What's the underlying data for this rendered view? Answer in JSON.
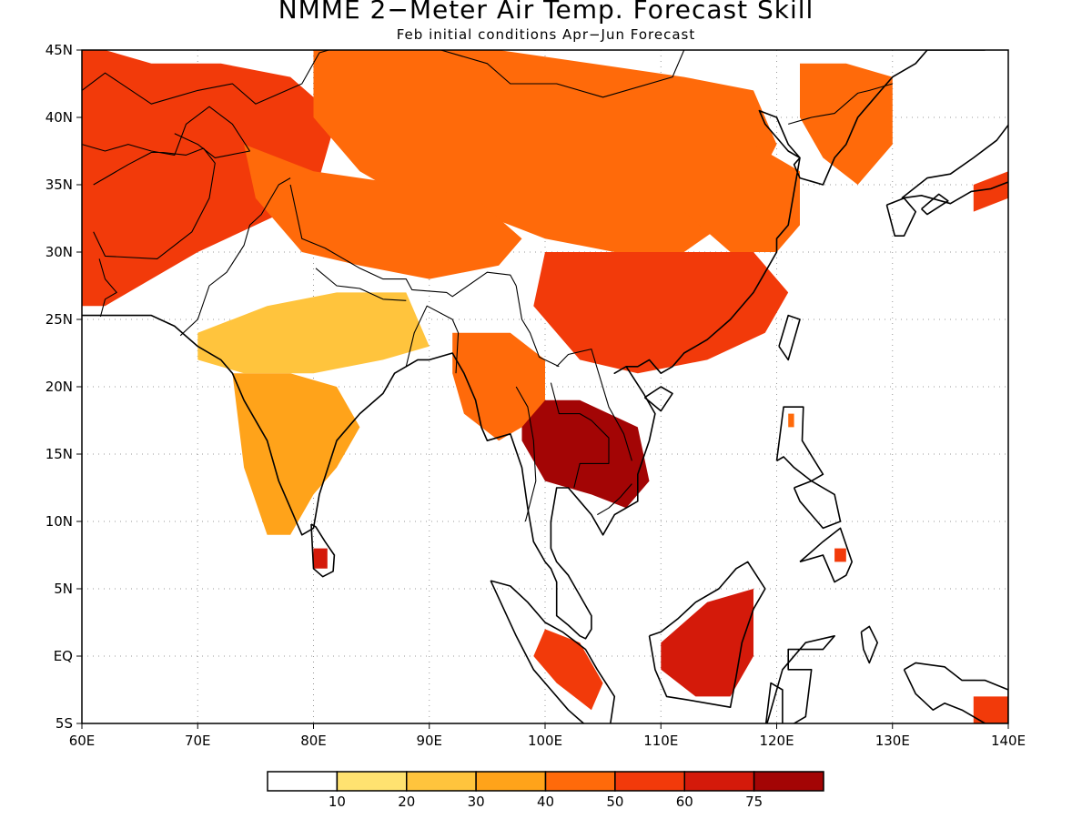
{
  "title": "NMME 2−Meter Air Temp. Forecast Skill",
  "subtitle": "Feb initial conditions  Apr−Jun Forecast",
  "map": {
    "lon_range": [
      60,
      140
    ],
    "lat_range": [
      -5,
      45
    ],
    "grid": "dotted",
    "lon_ticks": [
      {
        "value": 60,
        "label": "60E"
      },
      {
        "value": 70,
        "label": "70E"
      },
      {
        "value": 80,
        "label": "80E"
      },
      {
        "value": 90,
        "label": "90E"
      },
      {
        "value": 100,
        "label": "100E"
      },
      {
        "value": 110,
        "label": "110E"
      },
      {
        "value": 120,
        "label": "120E"
      },
      {
        "value": 130,
        "label": "130E"
      },
      {
        "value": 140,
        "label": "140E"
      }
    ],
    "lat_ticks": [
      {
        "value": 45,
        "label": "45N"
      },
      {
        "value": 40,
        "label": "40N"
      },
      {
        "value": 35,
        "label": "35N"
      },
      {
        "value": 30,
        "label": "30N"
      },
      {
        "value": 25,
        "label": "25N"
      },
      {
        "value": 20,
        "label": "20N"
      },
      {
        "value": 15,
        "label": "15N"
      },
      {
        "value": 10,
        "label": "10N"
      },
      {
        "value": 5,
        "label": "5N"
      },
      {
        "value": 0,
        "label": "EQ"
      },
      {
        "value": -5,
        "label": "5S"
      }
    ]
  },
  "colorbar": {
    "colors": [
      "#ffffff",
      "#ffe270",
      "#ffc43d",
      "#ffa31a",
      "#ff6a0a",
      "#f23a0a",
      "#d41a0a",
      "#a30505"
    ],
    "labels": [
      "10",
      "20",
      "30",
      "40",
      "50",
      "60",
      "75"
    ]
  },
  "skill_regions": [
    {
      "name": "central-asia",
      "value": 50,
      "lon": [
        60,
        62,
        66,
        72,
        78,
        82,
        80,
        75,
        70,
        66,
        62,
        60
      ],
      "lat": [
        45,
        45,
        44,
        44,
        43,
        40,
        34,
        32,
        30,
        28,
        26,
        26
      ]
    },
    {
      "name": "china-north",
      "value": 40,
      "lon": [
        80,
        88,
        96,
        104,
        112,
        118,
        120,
        117,
        112,
        106,
        100,
        94,
        88,
        84,
        80
      ],
      "lat": [
        45,
        45,
        45,
        44,
        43,
        42,
        38,
        33,
        30,
        30,
        31,
        33,
        34,
        36,
        40
      ]
    },
    {
      "name": "tibet-west",
      "value": 40,
      "lon": [
        74,
        80,
        88,
        94,
        98,
        96,
        90,
        84,
        79,
        75
      ],
      "lat": [
        38,
        36,
        35,
        34,
        31,
        29,
        28,
        29,
        30,
        34
      ]
    },
    {
      "name": "south-china",
      "value": 50,
      "lon": [
        100,
        106,
        112,
        118,
        121,
        119,
        114,
        108,
        103,
        99
      ],
      "lat": [
        30,
        30,
        30,
        30,
        27,
        24,
        22,
        21,
        22,
        26
      ]
    },
    {
      "name": "east-china",
      "value": 40,
      "lon": [
        112,
        118,
        122,
        122,
        120,
        116,
        112
      ],
      "lat": [
        38,
        38,
        36,
        32,
        30,
        30,
        33
      ]
    },
    {
      "name": "korea",
      "value": 40,
      "lon": [
        122,
        126,
        130,
        130,
        127,
        124,
        122
      ],
      "lat": [
        44,
        44,
        43,
        38,
        35,
        37,
        40
      ]
    },
    {
      "name": "japan-west",
      "value": 50,
      "lon": [
        137,
        140,
        140,
        137
      ],
      "lat": [
        35,
        36,
        34,
        33
      ]
    },
    {
      "name": "indochina",
      "value": 75,
      "lon": [
        98,
        103,
        108,
        109,
        107,
        104,
        100,
        98
      ],
      "lat": [
        19,
        19,
        17,
        13,
        11,
        12,
        13,
        16
      ]
    },
    {
      "name": "myanmar",
      "value": 40,
      "lon": [
        92,
        97,
        100,
        100,
        98,
        96,
        93,
        92
      ],
      "lat": [
        24,
        24,
        22,
        19,
        17,
        16,
        18,
        21
      ]
    },
    {
      "name": "india-south",
      "value": 30,
      "lon": [
        73,
        78,
        82,
        84,
        82,
        80,
        78,
        76,
        74
      ],
      "lat": [
        21,
        21,
        20,
        17,
        14,
        12,
        9,
        9,
        14
      ]
    },
    {
      "name": "india-north",
      "value": 20,
      "lon": [
        70,
        76,
        82,
        88,
        90,
        86,
        80,
        74,
        70
      ],
      "lat": [
        24,
        26,
        27,
        27,
        23,
        22,
        21,
        21,
        22
      ]
    },
    {
      "name": "sri-lanka",
      "value": 60,
      "lon": [
        80,
        81.2,
        81.2,
        80
      ],
      "lat": [
        8,
        8,
        6.5,
        6.5
      ]
    },
    {
      "name": "borneo",
      "value": 60,
      "lon": [
        110,
        114,
        118,
        118,
        116,
        113,
        110
      ],
      "lat": [
        1,
        4,
        5,
        0,
        -3,
        -3,
        -1
      ]
    },
    {
      "name": "sumatra",
      "value": 50,
      "lon": [
        100,
        103,
        105,
        104,
        101,
        99
      ],
      "lat": [
        2,
        1,
        -2,
        -4,
        -2,
        0
      ]
    },
    {
      "name": "new-guinea",
      "value": 50,
      "lon": [
        137,
        140,
        140,
        137
      ],
      "lat": [
        -3,
        -3,
        -5,
        -5
      ]
    },
    {
      "name": "luzon",
      "value": 40,
      "lon": [
        121,
        121.5,
        121.5,
        121
      ],
      "lat": [
        18,
        18,
        17,
        17
      ]
    },
    {
      "name": "mindanao",
      "value": 50,
      "lon": [
        125,
        126,
        126,
        125
      ],
      "lat": [
        8,
        8,
        7,
        7
      ]
    }
  ],
  "coastlines": [
    {
      "name": "asia-mainland-coast",
      "lon": [
        60,
        62,
        66,
        68,
        70,
        72,
        73,
        74,
        76,
        77,
        78,
        79,
        80,
        80.5,
        82,
        84,
        86,
        87,
        88,
        89,
        90,
        92,
        93,
        94,
        94.5,
        95,
        97,
        98,
        98.5,
        99,
        100,
        100.5,
        101,
        101,
        102,
        103,
        103.5,
        104,
        104,
        103,
        102,
        101.5,
        101,
        100.5,
        100.5,
        101,
        102,
        103,
        104,
        105,
        106,
        107,
        108,
        108,
        109,
        109.5,
        108.5,
        107,
        106,
        107,
        108,
        109,
        110,
        111,
        112,
        114,
        116,
        118,
        119,
        120,
        120,
        121,
        121.5,
        122,
        121,
        120,
        118.5,
        119,
        121,
        122,
        121.5,
        122,
        124,
        125,
        126,
        127,
        128,
        129,
        129.5,
        130,
        131,
        132,
        133,
        135,
        138,
        140
      ],
      "lat": [
        25.3,
        25.3,
        25.3,
        24.5,
        23,
        22,
        21,
        19,
        16,
        13,
        11,
        9,
        9.5,
        12,
        16,
        18,
        19.5,
        21,
        21.5,
        22,
        22,
        22.5,
        21,
        19,
        17,
        16,
        16.5,
        14,
        11,
        8.5,
        7,
        6.5,
        5.5,
        3,
        2.3,
        1.5,
        1.3,
        2,
        3,
        4.5,
        6,
        6.5,
        7,
        8,
        10,
        12.5,
        12.5,
        11.5,
        10.5,
        9,
        10.5,
        11,
        11.5,
        13.5,
        16,
        18,
        19.5,
        21.5,
        21,
        21.5,
        21.5,
        22,
        21,
        21.5,
        22.5,
        23.5,
        25,
        27,
        28.5,
        30,
        31,
        32,
        34.5,
        37,
        38,
        40,
        40.5,
        39.5,
        37.5,
        37,
        36.5,
        35.5,
        35,
        37,
        38,
        40,
        41,
        42,
        42.5,
        43,
        43.5,
        44,
        45,
        45,
        45
      ]
    },
    {
      "name": "sri-lanka-coast",
      "lon": [
        79.8,
        80.2,
        81.0,
        81.8,
        81.7,
        80.8,
        80.0,
        79.8
      ],
      "lat": [
        9.8,
        9.6,
        8.5,
        7.5,
        6.3,
        5.9,
        6.5,
        9.8
      ]
    },
    {
      "name": "sumatra-coast",
      "lon": [
        95.3,
        97,
        98.5,
        100,
        101.5,
        103.5,
        104.5,
        106,
        105.5,
        104,
        102,
        100.5,
        99,
        97.5,
        95.3
      ],
      "lat": [
        5.6,
        5.2,
        4,
        2.5,
        1.8,
        0.5,
        -1,
        -3,
        -5.8,
        -5.5,
        -4,
        -2.5,
        -1,
        1.5,
        5.6
      ]
    },
    {
      "name": "borneo-coast",
      "lon": [
        109,
        110,
        111.5,
        113,
        115,
        116.5,
        117.5,
        119,
        118,
        117,
        116.5,
        116,
        114,
        112,
        110.5,
        109.5,
        109
      ],
      "lat": [
        1.5,
        1.8,
        2.8,
        4,
        5,
        6.5,
        7,
        5,
        3.5,
        1,
        -1.5,
        -3.8,
        -3.5,
        -3.2,
        -3,
        -1,
        1.5
      ]
    },
    {
      "name": "java-coast",
      "lon": [
        105.5,
        108,
        111,
        114,
        114.5,
        112,
        109,
        106,
        105.5
      ],
      "lat": [
        -6.8,
        -6.3,
        -6.6,
        -7.5,
        -8.5,
        -8.3,
        -7.8,
        -7.2,
        -6.8
      ]
    },
    {
      "name": "sulawesi-coast",
      "lon": [
        119,
        120.5,
        122.5,
        125,
        124,
        121,
        121,
        123,
        122.5,
        120.5,
        120.5,
        119.5,
        119
      ],
      "lat": [
        -5.5,
        -1,
        1,
        1.5,
        0.5,
        0.5,
        -1,
        -1,
        -4.5,
        -5.5,
        -2.5,
        -2,
        -5.5
      ]
    },
    {
      "name": "luzon-coast",
      "lon": [
        120,
        120.6,
        122.3,
        122.2,
        124,
        123,
        121.5,
        120.6,
        120
      ],
      "lat": [
        14.5,
        18.5,
        18.5,
        16,
        13.5,
        13,
        14,
        14.8,
        14.5
      ]
    },
    {
      "name": "mindanao-coast",
      "lon": [
        122,
        124,
        125.5,
        126.5,
        126,
        125,
        124,
        122,
        122
      ],
      "lat": [
        7,
        8.5,
        9.5,
        7,
        6,
        5.5,
        7.5,
        7,
        7
      ]
    },
    {
      "name": "philippines-mid-coast",
      "lon": [
        121.5,
        123,
        125,
        125.5,
        124,
        123,
        122,
        121.5
      ],
      "lat": [
        12.5,
        13,
        12,
        10,
        9.5,
        10.5,
        11.5,
        12.5
      ]
    },
    {
      "name": "taiwan-coast",
      "lon": [
        120.2,
        121,
        122,
        121,
        120.2
      ],
      "lat": [
        23,
        25.3,
        25,
        22,
        23
      ]
    },
    {
      "name": "hainan-coast",
      "lon": [
        108.6,
        110,
        111,
        110,
        108.6
      ],
      "lat": [
        19.2,
        20,
        19.5,
        18.2,
        19.2
      ]
    },
    {
      "name": "japan-kyushu-coast",
      "lon": [
        129.5,
        131,
        132,
        131,
        130.2,
        129.5
      ],
      "lat": [
        33.5,
        34,
        33,
        31.2,
        31.2,
        33.5
      ]
    },
    {
      "name": "japan-shikoku-coast",
      "lon": [
        132.5,
        134,
        134.8,
        133,
        132.5
      ],
      "lat": [
        33.2,
        34.3,
        33.8,
        32.8,
        33.2
      ]
    },
    {
      "name": "japan-honshu-coast",
      "lon": [
        130.8,
        133,
        135,
        137,
        139,
        140.5,
        141.5,
        142,
        141,
        140,
        138.5,
        136.8,
        135,
        132.5,
        130.8
      ],
      "lat": [
        34,
        35.5,
        35.8,
        37,
        38.3,
        40,
        41.5,
        39,
        36,
        35.2,
        34.7,
        34.5,
        33.6,
        34.2,
        34
      ]
    },
    {
      "name": "new-guinea-coast",
      "lon": [
        131,
        132,
        134.5,
        136,
        138,
        140,
        140,
        138,
        136,
        134.5,
        133.5,
        132,
        131
      ],
      "lat": [
        -1,
        -0.5,
        -0.8,
        -1.8,
        -1.8,
        -2.5,
        -5,
        -5,
        -4,
        -3.5,
        -4,
        -2.8,
        -1
      ]
    },
    {
      "name": "halmahera-coast",
      "lon": [
        127.3,
        128,
        128.7,
        128,
        127.5,
        127.3
      ],
      "lat": [
        1.8,
        2.2,
        1,
        -0.5,
        0.5,
        1.8
      ]
    }
  ],
  "borders": [
    {
      "name": "pakistan-india-border",
      "lon": [
        68.5,
        70,
        71,
        72.5,
        74,
        74.5,
        75.5,
        77,
        78
      ],
      "lat": [
        23.8,
        25,
        27.5,
        28.5,
        30.5,
        32,
        32.8,
        35,
        35.5
      ]
    },
    {
      "name": "himalaya-border",
      "lon": [
        78,
        79,
        81,
        84,
        86,
        88,
        88.5,
        91.5,
        92,
        95,
        97,
        97.5
      ],
      "lat": [
        35,
        31,
        30.3,
        28.8,
        28,
        28,
        27.2,
        27,
        26.7,
        28.5,
        28.3,
        27.5
      ]
    },
    {
      "name": "nepal-south-border",
      "lon": [
        80.2,
        82,
        84,
        86,
        88
      ],
      "lat": [
        28.8,
        27.5,
        27.3,
        26.5,
        26.4
      ]
    },
    {
      "name": "bangladesh-border",
      "lon": [
        88,
        88.7,
        89.8,
        92,
        92.5,
        92.3
      ],
      "lat": [
        21.5,
        24,
        26,
        25,
        24,
        21
      ]
    },
    {
      "name": "myanmar-china-border",
      "lon": [
        97.5,
        98,
        98.7,
        99.5,
        101.2
      ],
      "lat": [
        27.5,
        25,
        24,
        22.2,
        21.5
      ]
    },
    {
      "name": "laos-vietnam-border",
      "lon": [
        101,
        102,
        104,
        105.5,
        106.8,
        107.5
      ],
      "lat": [
        21.5,
        22.4,
        22.8,
        18.5,
        16.5,
        14.5
      ]
    },
    {
      "name": "thailand-myanmar-border",
      "lon": [
        97.5,
        98.5,
        99,
        99.2,
        98.3
      ],
      "lat": [
        20,
        18.5,
        16,
        13,
        10
      ]
    },
    {
      "name": "thailand-laos-border",
      "lon": [
        100.5,
        101.2,
        103,
        104,
        105.5,
        105.5,
        103,
        102.5
      ],
      "lat": [
        20.3,
        18,
        18,
        17.5,
        16.2,
        14.3,
        14.3,
        12.5
      ]
    },
    {
      "name": "cambodia-vietnam-border",
      "lon": [
        104.5,
        105.5,
        106.5,
        107.5
      ],
      "lat": [
        10.5,
        11,
        11.8,
        12.8
      ]
    },
    {
      "name": "china-mongolia-border",
      "lon": [
        87.5,
        90,
        91,
        95,
        97,
        101,
        105,
        111,
        112,
        114,
        116,
        119
      ],
      "lat": [
        49,
        47,
        45,
        44,
        42.5,
        42.5,
        41.5,
        43,
        45,
        45,
        46,
        47
      ]
    },
    {
      "name": "kazakhstan-border",
      "lon": [
        60,
        62,
        66,
        70,
        73,
        75,
        79,
        80.5,
        82.5,
        85,
        87.5
      ],
      "lat": [
        42,
        43.3,
        41,
        42,
        42.5,
        41,
        42.5,
        44.8,
        45.3,
        47,
        49
      ]
    },
    {
      "name": "central-asia-border",
      "lon": [
        60,
        62,
        64,
        66,
        68,
        69,
        71,
        73,
        74.5,
        71.5,
        70,
        68
      ],
      "lat": [
        38,
        37.5,
        38,
        37.5,
        37.2,
        39.5,
        40.8,
        39.5,
        37.5,
        37,
        38,
        38.8
      ]
    },
    {
      "name": "afghanistan-border",
      "lon": [
        61,
        62,
        64,
        66,
        67,
        69,
        70.5,
        71.5,
        71,
        69.5,
        66.5,
        62,
        61
      ],
      "lat": [
        35,
        35.5,
        36.5,
        37.4,
        37.4,
        37.2,
        37.7,
        36.6,
        34,
        31.5,
        29.5,
        29.7,
        31.5
      ]
    },
    {
      "name": "iran-pakistan-border",
      "lon": [
        61.5,
        62,
        63,
        62,
        61.6
      ],
      "lat": [
        29.5,
        28,
        27,
        26.5,
        25.2
      ]
    },
    {
      "name": "china-korea-border",
      "lon": [
        121,
        123,
        125,
        127,
        128,
        130
      ],
      "lat": [
        39.5,
        40,
        40.3,
        41.8,
        42,
        42.5
      ]
    }
  ]
}
